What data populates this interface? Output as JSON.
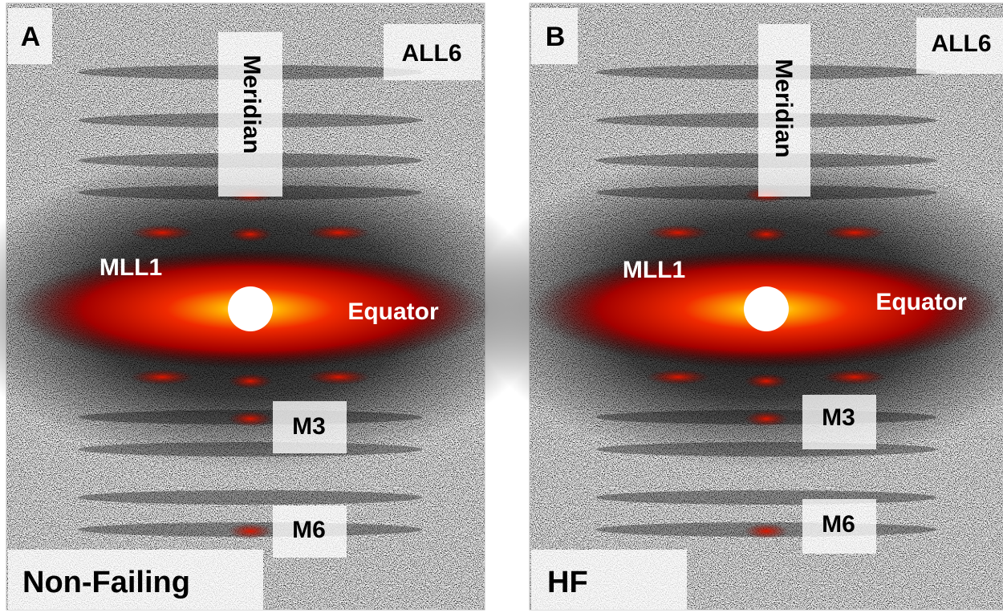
{
  "panels": [
    {
      "letter": "A",
      "condition": "Non-Failing",
      "labels": {
        "all6": "ALL6",
        "meridian": "Meridian",
        "mll1": "MLL1",
        "equator": "Equator",
        "m3": "M3",
        "m6": "M6"
      }
    },
    {
      "letter": "B",
      "condition": "HF",
      "labels": {
        "all6": "ALL6",
        "meridian": "Meridian",
        "mll1": "MLL1",
        "equator": "Equator",
        "m3": "M3",
        "m6": "M6"
      }
    }
  ]
}
